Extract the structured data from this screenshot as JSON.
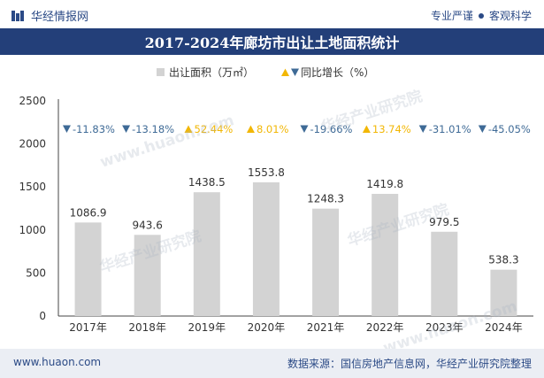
{
  "header": {
    "brand_name": "华经情报网",
    "right_label_1": "专业严谨",
    "right_label_2": "客观科学"
  },
  "chart_title": "2017-2024年廊坊市出让土地面积统计",
  "chart_data": {
    "type": "bar",
    "title": "2017-2024年廊坊市出让土地面积统计",
    "categories": [
      "2017年",
      "2018年",
      "2019年",
      "2020年",
      "2021年",
      "2022年",
      "2023年",
      "2024年"
    ],
    "series": [
      {
        "name": "出让面积（万㎡）",
        "values": [
          1086.9,
          943.6,
          1438.5,
          1553.8,
          1248.3,
          1419.8,
          979.5,
          538.3
        ],
        "value_labels": [
          "1086.9",
          "943.6",
          "1438.5",
          "1553.8",
          "1248.3",
          "1419.8",
          "979.5",
          "538.3"
        ]
      },
      {
        "name": "同比增长（%）",
        "values": [
          -11.83,
          -13.18,
          52.44,
          8.01,
          -19.66,
          13.74,
          -31.01,
          -45.05
        ],
        "value_labels": [
          "-11.83%",
          "-13.18%",
          "52.44%",
          "8.01%",
          "-19.66%",
          "13.74%",
          "-31.01%",
          "-45.05%"
        ]
      }
    ],
    "yticks": [
      "0",
      "500",
      "1000",
      "1500",
      "2000",
      "2500"
    ],
    "ylim": [
      0,
      2500
    ],
    "xlabel": "",
    "ylabel": "",
    "legend_position": "top-center",
    "colors": {
      "bar": "#d3d3d3",
      "up": "#f2b705",
      "down": "#3e6a96",
      "axis_text": "#333333"
    }
  },
  "watermarks": [
    "华经产业研究院",
    "www.huaon.com",
    "华经产业研究院",
    "华经产业研究院",
    "www.huaon.com"
  ],
  "footer": {
    "site": "www.huaon.com",
    "source": "数据来源：国信房地产信息网，华经产业研究院整理"
  }
}
